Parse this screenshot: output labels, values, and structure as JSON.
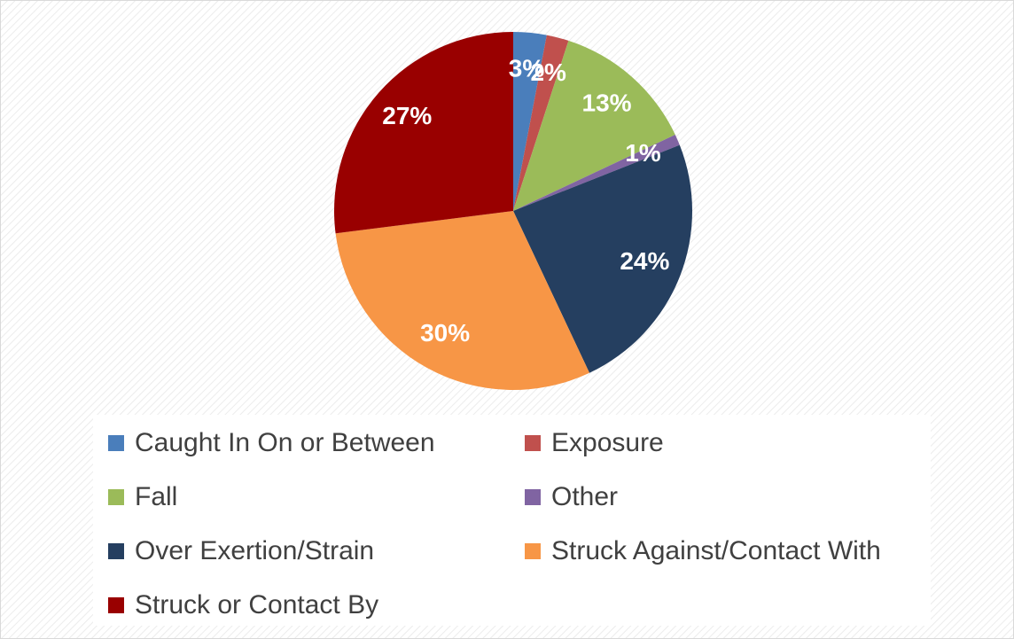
{
  "chart_data": {
    "type": "pie",
    "categories": [
      "Caught In  On or Between",
      "Exposure",
      "Fall",
      "Other",
      "Over Exertion/Strain",
      "Struck Against/Contact With",
      "Struck or Contact By"
    ],
    "values": [
      3,
      2,
      13,
      1,
      24,
      30,
      27
    ],
    "value_labels": [
      "3%",
      "2%",
      "13%",
      "1%",
      "24%",
      "30%",
      "27%"
    ],
    "colors": [
      "#4a7ebb",
      "#c0504d",
      "#9bbb59",
      "#8064a2",
      "#253f60",
      "#f79646",
      "#990000"
    ]
  }
}
